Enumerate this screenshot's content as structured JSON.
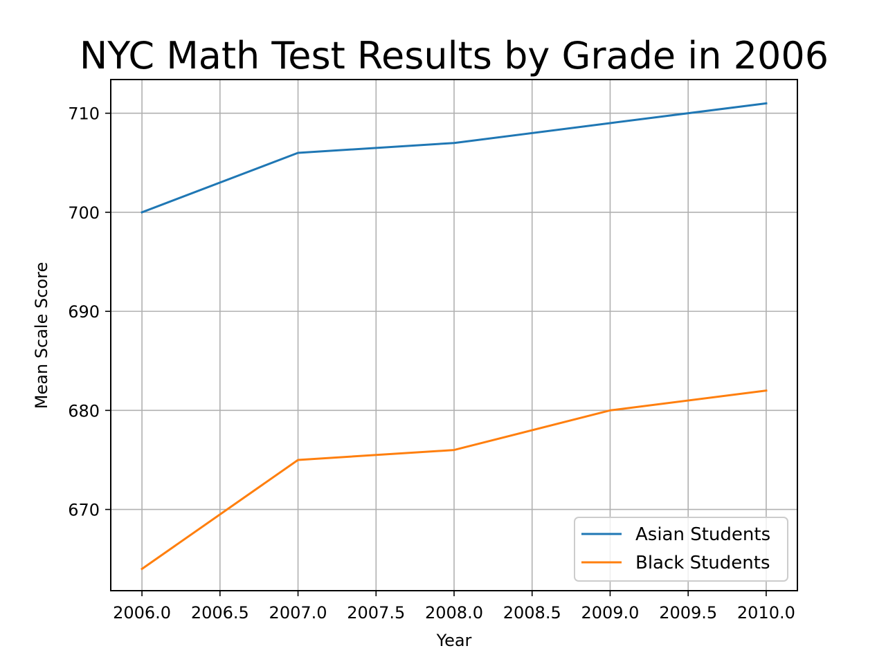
{
  "chart_data": {
    "type": "line",
    "title": "NYC Math Test Results by Grade in 2006",
    "xlabel": "Year",
    "ylabel": "Mean Scale Score",
    "x": [
      2006,
      2007,
      2008,
      2009,
      2010
    ],
    "xlim": [
      2005.8,
      2010.2
    ],
    "ylim": [
      661.8,
      713.4
    ],
    "xticks": [
      2006.0,
      2006.5,
      2007.0,
      2007.5,
      2008.0,
      2008.5,
      2009.0,
      2009.5,
      2010.0
    ],
    "xtick_labels": [
      "2006.0",
      "2006.5",
      "2007.0",
      "2007.5",
      "2008.0",
      "2008.5",
      "2009.0",
      "2009.5",
      "2010.0"
    ],
    "yticks": [
      670,
      680,
      690,
      700,
      710
    ],
    "ytick_labels": [
      "670",
      "680",
      "690",
      "700",
      "710"
    ],
    "grid": true,
    "legend_position": "lower-right",
    "series": [
      {
        "name": "Asian Students",
        "color": "#1f77b4",
        "values": [
          700,
          706,
          707,
          709,
          711
        ]
      },
      {
        "name": "Black Students",
        "color": "#ff7f0e",
        "values": [
          664,
          675,
          676,
          680,
          682
        ]
      }
    ]
  }
}
